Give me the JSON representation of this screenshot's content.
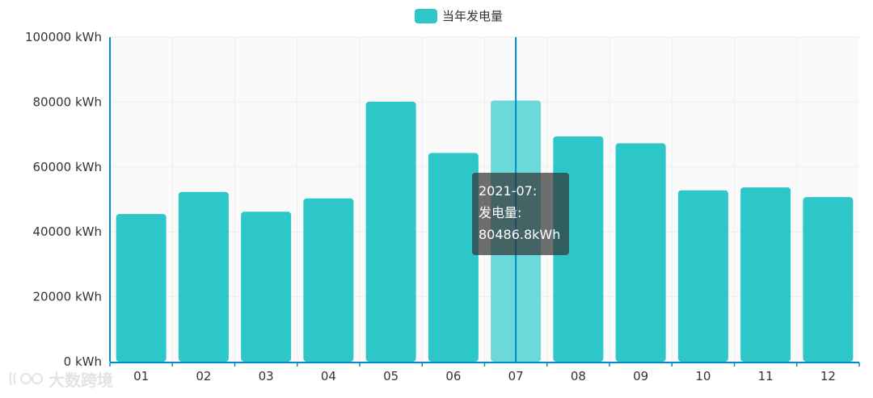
{
  "legend": {
    "label": "当年发电量",
    "color": "#2ec7c9"
  },
  "tooltip": {
    "period": "2021-07:",
    "label": "发电量:",
    "value": "80486.8kWh"
  },
  "watermark": {
    "text": "大数跨境"
  },
  "chart_data": {
    "type": "bar",
    "categories": [
      "01",
      "02",
      "03",
      "04",
      "05",
      "06",
      "07",
      "08",
      "09",
      "10",
      "11",
      "12"
    ],
    "series": [
      {
        "name": "当年发电量",
        "values": [
          45500,
          52300,
          46200,
          50300,
          80100,
          64300,
          80486.8,
          69400,
          67300,
          52800,
          53700,
          50700
        ]
      }
    ],
    "y_ticks": [
      "0 kWh",
      "20000 kWh",
      "40000 kWh",
      "60000 kWh",
      "80000 kWh",
      "100000 kWh"
    ],
    "ylim": [
      0,
      100000
    ],
    "highlighted_category": "07",
    "colors": {
      "bar": "#2ec7c9",
      "bar_highlight": "#6cd8da",
      "axis": "#008acd",
      "grid": "#eeeeee",
      "plot_bg": "#fafafa"
    },
    "grid": true,
    "legend_position": "top-center"
  }
}
